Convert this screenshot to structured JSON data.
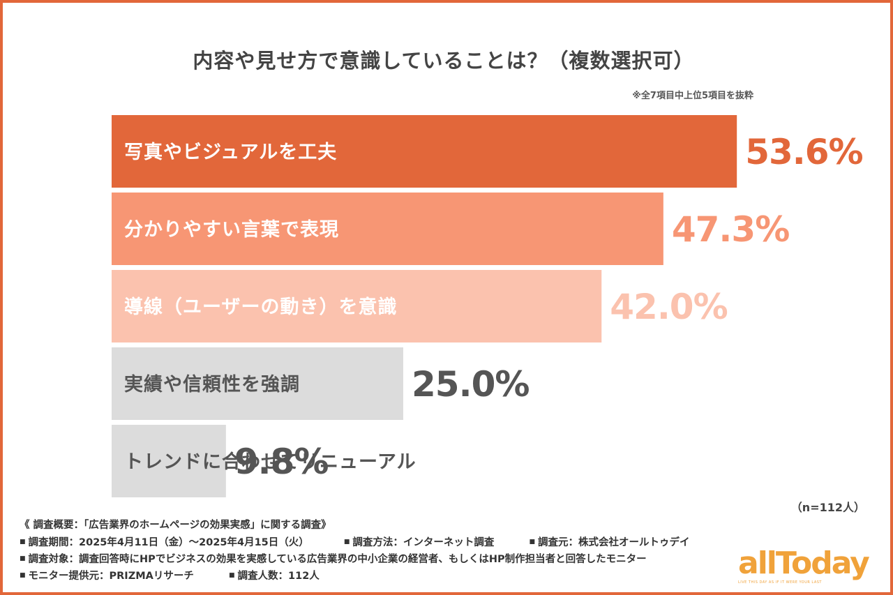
{
  "chart_data": {
    "type": "bar",
    "orientation": "horizontal",
    "title": "内容や見せ方で意識していることは？（複数選択可）",
    "note": "※全7項目中上位5項目を抜粋",
    "categories": [
      "写真やビジュアルを工夫",
      "分かりやすい言葉で表現",
      "導線（ユーザーの動き）を意識",
      "実績や信頼性を強調",
      "トレンドに合わせてリニューアル"
    ],
    "values": [
      53.6,
      47.3,
      42.0,
      25.0,
      9.8
    ],
    "value_labels": [
      "53.6%",
      "47.3%",
      "42.0%",
      "25.0%",
      "9.8%"
    ],
    "colors": [
      "#e2673a",
      "#f79674",
      "#fbc2ae",
      "#dcdcdc",
      "#dcdcdc"
    ],
    "label_colors": [
      "#ffffff",
      "#ffffff",
      "#ffffff",
      "#555555",
      "#555555"
    ],
    "value_colors": [
      "#e2673a",
      "#f79674",
      "#fbc2ae",
      "#555555",
      "#555555"
    ],
    "unit": "%",
    "xlim": [
      0,
      60
    ],
    "sample_size": "（n=112人）"
  },
  "survey": {
    "heading": "《 調査概要：「広告業界のホームページの効果実感」に関する調査》",
    "period": "調査期間：2025年4月11日（金）〜2025年4月15日（火）",
    "method": "調査方法：インターネット調査",
    "source": "調査元：株式会社オールトゥデイ",
    "target": "調査対象：調査回答時にHPでビジネスの効果を実感している広告業界の中小企業の経営者、もしくはHP制作担当者と回答したモニター",
    "provider": "モニター提供元：PRIZMAリサーチ",
    "count": "調査人数：112人",
    "bullet": "■"
  },
  "logo": {
    "name": "allToday",
    "tagline": "LIVE THIS DAY AS IF IT WERE YOUR LAST"
  }
}
